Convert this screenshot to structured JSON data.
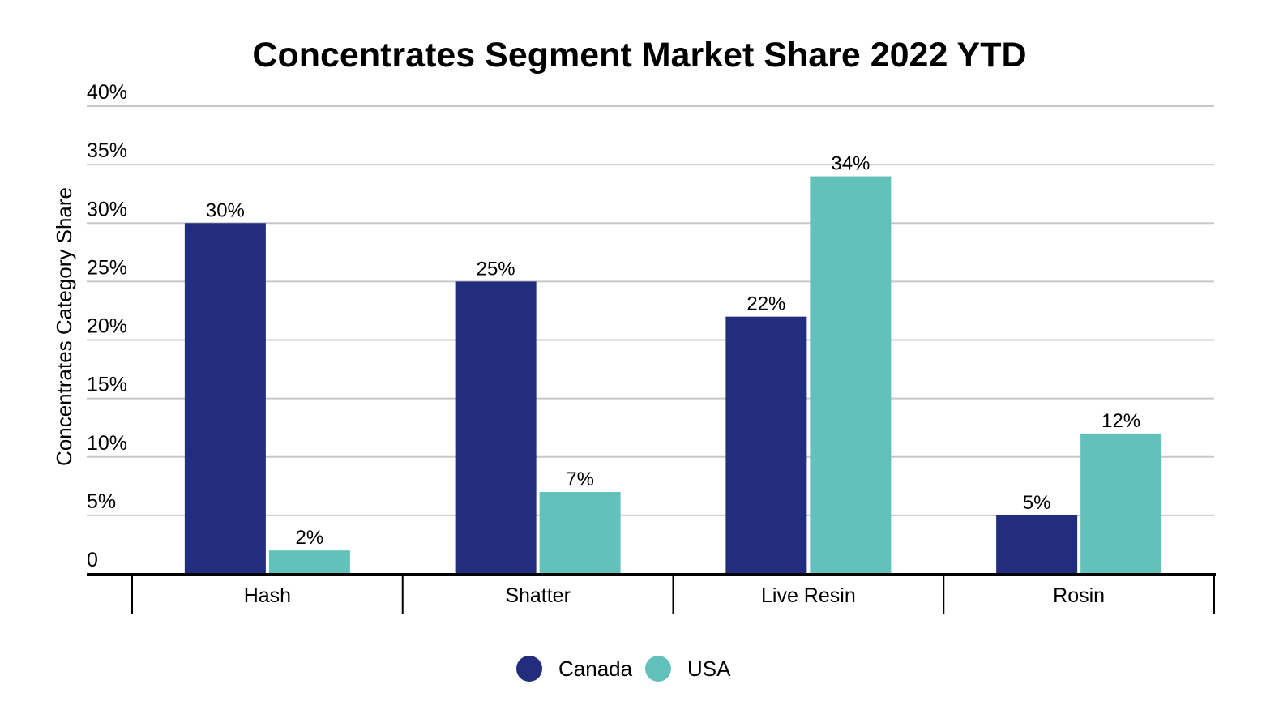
{
  "chart_data": {
    "type": "bar",
    "title": "Concentrates Segment Market Share 2022 YTD",
    "xlabel": "",
    "ylabel": "Concentrates Category Share",
    "categories": [
      "Hash",
      "Shatter",
      "Live Resin",
      "Rosin"
    ],
    "series": [
      {
        "name": "Canada",
        "color": "#232d7d",
        "values": [
          30,
          25,
          22,
          5
        ],
        "labels": [
          "30%",
          "25%",
          "22%",
          "5%"
        ]
      },
      {
        "name": "USA",
        "color": "#62c1bb",
        "values": [
          2,
          7,
          34,
          12
        ],
        "labels": [
          "2%",
          "7%",
          "34%",
          "12%"
        ]
      }
    ],
    "ylim": [
      0,
      40
    ],
    "yticks": [
      0,
      5,
      10,
      15,
      20,
      25,
      30,
      35,
      40
    ],
    "ytick_labels": [
      "0",
      "5%",
      "10%",
      "15%",
      "20%",
      "25%",
      "30%",
      "35%",
      "40%"
    ],
    "grid": true,
    "legend_position": "bottom-center"
  }
}
